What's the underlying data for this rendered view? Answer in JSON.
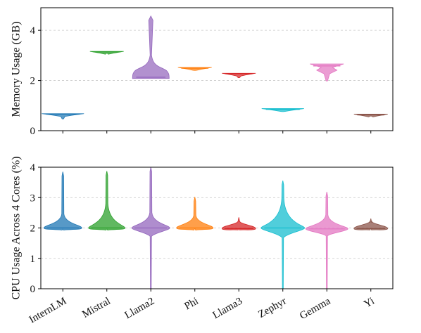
{
  "chart_data": [
    {
      "type": "violin",
      "ylabel": "Memory Usage (GB)",
      "ylim": [
        0,
        4.9
      ],
      "yticks": [
        "0",
        "2",
        "4"
      ],
      "grid": "horizontal dashed",
      "series": [
        {
          "name": "InternLM",
          "color": "#1f77b4",
          "median": 0.66,
          "min": 0.47,
          "max": 0.68,
          "bulk_low": 0.6,
          "bulk_high": 0.68
        },
        {
          "name": "Mistral",
          "color": "#2ca02c",
          "median": 3.14,
          "min": 3.08,
          "max": 3.16,
          "bulk_low": 3.11,
          "bulk_high": 3.16
        },
        {
          "name": "Llama2",
          "color": "#9467bd",
          "median": 2.13,
          "min": 2.08,
          "max": 4.57,
          "bulk_low": 2.08,
          "bulk_high": 2.45
        },
        {
          "name": "Phi",
          "color": "#ff7f0e",
          "median": 2.49,
          "min": 2.4,
          "max": 2.52,
          "bulk_low": 2.44,
          "bulk_high": 2.52
        },
        {
          "name": "Llama3",
          "color": "#d62728",
          "median": 2.27,
          "min": 2.11,
          "max": 2.29,
          "bulk_low": 2.2,
          "bulk_high": 2.29
        },
        {
          "name": "Zephyr",
          "color": "#17becf",
          "median": 0.85,
          "min": 0.76,
          "max": 0.88,
          "bulk_low": 0.8,
          "bulk_high": 0.88
        },
        {
          "name": "Gemma",
          "color": "#e377c2",
          "median": 2.58,
          "min": 1.98,
          "max": 2.66,
          "bulk_low": 2.45,
          "bulk_high": 2.66
        },
        {
          "name": "Yi",
          "color": "#8c564b",
          "median": 0.63,
          "min": 0.58,
          "max": 0.66,
          "bulk_low": 0.6,
          "bulk_high": 0.66
        }
      ]
    },
    {
      "type": "violin",
      "ylabel": "CPU Usage Across 4 Cores (%)",
      "ylim": [
        0,
        4
      ],
      "yticks": [
        "0",
        "1",
        "2",
        "3",
        "4"
      ],
      "grid": "horizontal dashed",
      "categories": [
        "InternLM",
        "Mistral",
        "Llama2",
        "Phi",
        "Llama3",
        "Zephyr",
        "Gemma",
        "Yi"
      ],
      "series": [
        {
          "name": "InternLM",
          "color": "#1f77b4",
          "median": 2.0,
          "min": 1.96,
          "max": 3.85
        },
        {
          "name": "Mistral",
          "color": "#2ca02c",
          "median": 2.0,
          "min": 1.96,
          "max": 3.87
        },
        {
          "name": "Llama2",
          "color": "#9467bd",
          "median": 2.0,
          "min": 0.0,
          "max": 4.0
        },
        {
          "name": "Phi",
          "color": "#ff7f0e",
          "median": 2.0,
          "min": 1.97,
          "max": 3.02
        },
        {
          "name": "Llama3",
          "color": "#d62728",
          "median": 1.98,
          "min": 1.97,
          "max": 2.35
        },
        {
          "name": "Zephyr",
          "color": "#17becf",
          "median": 2.0,
          "min": 0.0,
          "max": 3.56
        },
        {
          "name": "Gemma",
          "color": "#e377c2",
          "median": 1.97,
          "min": 0.0,
          "max": 3.19
        },
        {
          "name": "Yi",
          "color": "#8c564b",
          "median": 1.98,
          "min": 1.97,
          "max": 2.31
        }
      ]
    }
  ]
}
